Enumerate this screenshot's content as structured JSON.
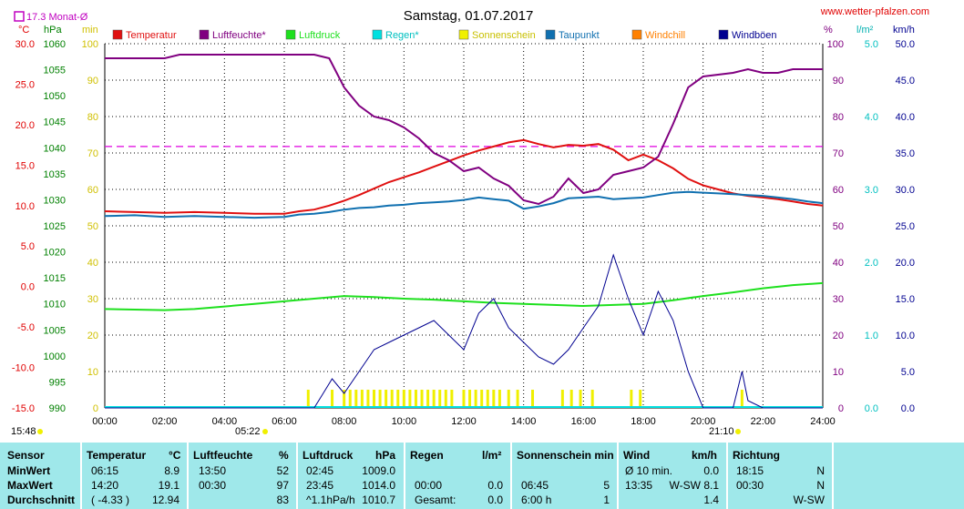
{
  "header": {
    "title": "Samstag, 01.07.2017",
    "website": "www.wetter-pfalzen.com",
    "month_avg": "17.3 Monat-Ø"
  },
  "colors": {
    "temperature": "#e01010",
    "humidity": "#800080",
    "pressure": "#1ee01e",
    "rain": "#00e0e0",
    "sunshine": "#f0f000",
    "dewpoint": "#1070b0",
    "windchill": "#ff8000",
    "gust": "#000090",
    "table_bg": "#9fe8ea"
  },
  "chart_data": {
    "type": "line",
    "title": "Samstag, 01.07.2017",
    "x_ticks": [
      "00:00",
      "02:00",
      "04:00",
      "06:00",
      "08:00",
      "10:00",
      "12:00",
      "14:00",
      "16:00",
      "18:00",
      "20:00",
      "22:00",
      "24:00"
    ],
    "axes": {
      "temp": {
        "unit": "°C",
        "range": [
          -15,
          30
        ],
        "ticks": [
          "30.0",
          "25.0",
          "20.0",
          "15.0",
          "10.0",
          "5.0",
          "0.0",
          "-5.0",
          "-10.0",
          "-15.0"
        ]
      },
      "pressure": {
        "unit": "hPa",
        "range": [
          990,
          1060
        ],
        "ticks": [
          "1060",
          "1055",
          "1050",
          "1045",
          "1040",
          "1035",
          "1030",
          "1025",
          "1020",
          "1015",
          "1010",
          "1005",
          "1000",
          "995",
          "990"
        ]
      },
      "minutes": {
        "unit": "min",
        "range": [
          0,
          100
        ],
        "ticks": [
          "100",
          "90",
          "80",
          "70",
          "60",
          "50",
          "40",
          "30",
          "20",
          "10",
          "0"
        ]
      },
      "humidity": {
        "unit": "%",
        "range": [
          0,
          100
        ],
        "ticks": [
          "100",
          "90",
          "80",
          "70",
          "60",
          "50",
          "40",
          "30",
          "20",
          "10",
          "0"
        ]
      },
      "rain": {
        "unit": "l/m²",
        "range": [
          0,
          5
        ],
        "ticks": [
          "5.0",
          "4.0",
          "3.0",
          "2.0",
          "1.0",
          "0.0"
        ]
      },
      "wind": {
        "unit": "km/h",
        "range": [
          0,
          50
        ],
        "ticks": [
          "50.0",
          "45.0",
          "40.0",
          "35.0",
          "30.0",
          "25.0",
          "20.0",
          "15.0",
          "10.0",
          "5.0",
          "0.0"
        ]
      }
    },
    "legend": [
      "Temperatur",
      "Luftfeuchte*",
      "Luftdruck",
      "Regen*",
      "Sonnenschein",
      "Taupunkt",
      "Windchill",
      "Windböen"
    ],
    "month_avg_temp": 17.3,
    "series": [
      {
        "name": "Temperatur",
        "axis": "temp",
        "x": [
          0,
          1,
          2,
          3,
          4,
          5,
          6,
          6.5,
          7,
          7.5,
          8,
          8.5,
          9,
          9.5,
          10,
          10.5,
          11,
          11.5,
          12,
          12.5,
          13,
          13.5,
          14,
          14.5,
          15,
          15.5,
          16,
          16.5,
          17,
          17.5,
          18,
          18.5,
          19,
          19.5,
          20,
          20.5,
          21,
          21.5,
          22,
          22.5,
          23,
          23.5,
          24
        ],
        "y": [
          9.3,
          9.2,
          9.1,
          9.2,
          9.1,
          9.0,
          9.0,
          9.3,
          9.5,
          10.0,
          10.6,
          11.3,
          12.1,
          12.9,
          13.5,
          14.1,
          14.8,
          15.5,
          16.2,
          16.8,
          17.3,
          17.8,
          18.1,
          17.6,
          17.2,
          17.5,
          17.4,
          17.6,
          16.9,
          15.6,
          16.3,
          15.6,
          14.6,
          13.3,
          12.5,
          12.0,
          11.5,
          11.2,
          11.0,
          10.8,
          10.5,
          10.2,
          10.0
        ]
      },
      {
        "name": "Luftfeuchte*",
        "axis": "humidity",
        "x": [
          0,
          2,
          2.5,
          4,
          5,
          6,
          7,
          7.5,
          8,
          8.5,
          9,
          9.5,
          10,
          10.5,
          11,
          11.5,
          12,
          12.5,
          13,
          13.5,
          14,
          14.5,
          15,
          15.5,
          16,
          16.5,
          17,
          17.5,
          18,
          18.5,
          19,
          19.5,
          20,
          21,
          21.5,
          22,
          22.5,
          23,
          23.5,
          24
        ],
        "y": [
          96,
          96,
          97,
          97,
          97,
          97,
          97,
          96,
          88,
          83,
          80,
          79,
          77,
          74,
          70,
          68,
          65,
          66,
          63,
          61,
          57,
          56,
          58,
          63,
          59,
          60,
          64,
          65,
          66,
          69,
          78,
          88,
          91,
          92,
          93,
          92,
          92,
          93,
          93,
          93
        ]
      },
      {
        "name": "Luftdruck",
        "axis": "pressure",
        "x": [
          0,
          1,
          2,
          3,
          4,
          5,
          6,
          7,
          8,
          9,
          10,
          11,
          12,
          13,
          14,
          15,
          16,
          17,
          18,
          19,
          20,
          21,
          22,
          23,
          24
        ],
        "y": [
          1009.0,
          1008.9,
          1008.8,
          1009.0,
          1009.5,
          1010.0,
          1010.5,
          1011.0,
          1011.5,
          1011.3,
          1011.0,
          1010.8,
          1010.5,
          1010.2,
          1010.0,
          1009.8,
          1009.6,
          1009.8,
          1010.0,
          1010.7,
          1011.5,
          1012.2,
          1013.0,
          1013.6,
          1014.0
        ]
      },
      {
        "name": "Taupunkt",
        "axis": "temp",
        "x": [
          0,
          1,
          2,
          3,
          4,
          5,
          6,
          6.5,
          7,
          7.5,
          8,
          8.5,
          9,
          9.5,
          10,
          10.5,
          11,
          11.5,
          12,
          12.5,
          13,
          13.5,
          14,
          14.5,
          15,
          15.5,
          16,
          16.5,
          17,
          17.5,
          18,
          18.5,
          19,
          19.5,
          20,
          20.5,
          21,
          21.5,
          22,
          22.5,
          23,
          23.5,
          24
        ],
        "y": [
          8.7,
          8.8,
          8.6,
          8.7,
          8.6,
          8.5,
          8.6,
          8.9,
          9.0,
          9.2,
          9.5,
          9.7,
          9.8,
          10.0,
          10.1,
          10.3,
          10.4,
          10.5,
          10.7,
          11.0,
          10.8,
          10.6,
          9.6,
          9.9,
          10.3,
          10.9,
          11.0,
          11.1,
          10.8,
          10.9,
          11.0,
          11.3,
          11.6,
          11.7,
          11.6,
          11.5,
          11.4,
          11.3,
          11.2,
          11.0,
          10.8,
          10.5,
          10.3
        ]
      },
      {
        "name": "Windböen",
        "axis": "wind",
        "x": [
          0,
          7,
          7.3,
          7.6,
          8,
          8.5,
          9,
          9.5,
          10,
          10.5,
          11,
          11.5,
          12,
          12.5,
          13,
          13.5,
          14,
          14.5,
          15,
          15.5,
          16,
          16.5,
          17,
          17.5,
          18,
          18.5,
          19,
          19.5,
          20,
          21,
          21.3,
          21.5,
          22,
          24
        ],
        "y": [
          0,
          0,
          2,
          4,
          2,
          5,
          8,
          9,
          10,
          11,
          12,
          10,
          8,
          13,
          15,
          11,
          9,
          7,
          6,
          8,
          11,
          14,
          21,
          15,
          10,
          16,
          12,
          5,
          0,
          0,
          5,
          1,
          0,
          0
        ]
      }
    ],
    "sunshine_bars_min": {
      "x": [
        6.8,
        7.6,
        8.0,
        8.2,
        8.4,
        8.6,
        8.8,
        9.0,
        9.2,
        9.4,
        9.6,
        9.8,
        10.0,
        10.2,
        10.4,
        10.6,
        10.8,
        11.0,
        11.2,
        11.4,
        11.6,
        12.0,
        12.2,
        12.4,
        12.6,
        12.8,
        13.0,
        13.2,
        13.5,
        13.8,
        14.3,
        15.3,
        15.6,
        15.9,
        16.3,
        17.6,
        17.9,
        21.3
      ],
      "y": [
        5,
        5,
        5,
        5,
        5,
        5,
        5,
        5,
        5,
        5,
        5,
        5,
        5,
        5,
        5,
        5,
        5,
        5,
        5,
        5,
        5,
        5,
        5,
        5,
        5,
        5,
        5,
        5,
        5,
        5,
        5,
        5,
        5,
        5,
        5,
        5,
        5,
        5
      ]
    },
    "sunrise": "05:22",
    "sunset": "21:10",
    "stamp": "15:48"
  },
  "table": {
    "headers": {
      "sensor": "Sensor",
      "temperature": "Temperatur",
      "temp_unit": "°C",
      "humidity": "Luftfeuchte",
      "hum_unit": "%",
      "pressure": "Luftdruck",
      "press_unit": "hPa",
      "rain": "Regen",
      "rain_unit": "l/m²",
      "sun": "Sonnenschein min",
      "wind": "Wind",
      "wind_unit": "km/h",
      "direction": "Richtung"
    },
    "rows": [
      {
        "label": "MinWert",
        "temp_time": "06:15",
        "temp_val": "8.9",
        "hum_time": "13:50",
        "hum_val": "52",
        "press_time": "02:45",
        "press_val": "1009.0",
        "rain_time": "",
        "rain_val": "",
        "sun_time": "",
        "sun_val": "",
        "wind_time": "Ø 10 min.",
        "wind_val": "0.0",
        "dir_time": "18:15",
        "dir_val": "N"
      },
      {
        "label": "MaxWert",
        "temp_time": "14:20",
        "temp_val": "19.1",
        "hum_time": "00:30",
        "hum_val": "97",
        "press_time": "23:45",
        "press_val": "1014.0",
        "rain_time": "00:00",
        "rain_val": "0.0",
        "sun_time": "06:45",
        "sun_val": "5",
        "wind_time": "13:35",
        "wind_val": "W-SW 8.1",
        "dir_time": "00:30",
        "dir_val": "N"
      },
      {
        "label": "Durchschnitt",
        "temp_time": "( -4.33 )",
        "temp_val": "12.94",
        "hum_time": "",
        "hum_val": "83",
        "press_time": "^1.1hPa/h",
        "press_val": "1010.7",
        "rain_time": "Gesamt:",
        "rain_val": "0.0",
        "sun_time": "6:00 h",
        "sun_val": "1",
        "wind_time": "",
        "wind_val": "1.4",
        "dir_time": "",
        "dir_val": "W-SW"
      }
    ]
  }
}
